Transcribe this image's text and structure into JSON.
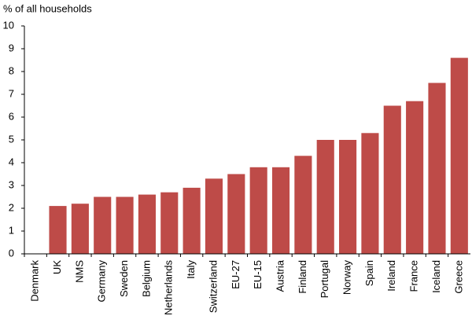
{
  "chart_data": {
    "type": "bar",
    "y_label": "% of all households",
    "categories": [
      "Denmark",
      "UK",
      "NMS",
      "Germany",
      "Sweden",
      "Belgium",
      "Netherlands",
      "Italy",
      "Switzerland",
      "EU-27",
      "EU-15",
      "Austria",
      "Finland",
      "Portugal",
      "Norway",
      "Spain",
      "Ireland",
      "France",
      "Iceland",
      "Greece"
    ],
    "values": [
      0,
      2.1,
      2.2,
      2.5,
      2.5,
      2.6,
      2.7,
      2.9,
      3.3,
      3.5,
      3.8,
      3.8,
      4.3,
      5.0,
      5.0,
      5.3,
      6.5,
      6.7,
      7.5,
      8.6
    ],
    "color": "#be4b48",
    "ylim": [
      0,
      10
    ],
    "yticks": [
      0,
      1,
      2,
      3,
      4,
      5,
      6,
      7,
      8,
      9,
      10
    ],
    "grid": false
  }
}
